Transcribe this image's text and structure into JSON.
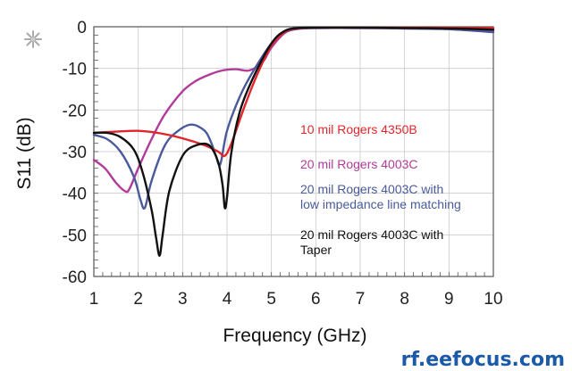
{
  "chart_data": {
    "type": "line",
    "xlabel": "Frequency (GHz)",
    "ylabel": "S11 (dB)",
    "xlim": [
      1,
      10
    ],
    "ylim": [
      -60,
      0
    ],
    "x_ticks": [
      1,
      2,
      3,
      4,
      5,
      6,
      7,
      8,
      9,
      10
    ],
    "y_ticks": [
      0,
      -10,
      -20,
      -30,
      -40,
      -50,
      -60
    ],
    "grid": true,
    "legend_position": "right",
    "series": [
      {
        "name": "10 mil Rogers 4350B",
        "color": "#e0262c",
        "x": [
          1.0,
          1.5,
          2.0,
          2.5,
          3.0,
          3.5,
          3.8,
          3.95,
          4.1,
          4.4,
          4.7,
          5.0,
          5.3,
          5.6,
          6.0,
          7.0,
          8.0,
          9.0,
          10.0
        ],
        "y": [
          -25.5,
          -25.2,
          -25.0,
          -25.6,
          -26.8,
          -28.5,
          -30.0,
          -31.0,
          -28.0,
          -19.0,
          -11.0,
          -4.5,
          -1.2,
          -0.4,
          -0.2,
          -0.2,
          -0.2,
          -0.2,
          -0.3
        ]
      },
      {
        "name": "20 mil Rogers 4003C",
        "color": "#b23a9a",
        "x": [
          1.0,
          1.25,
          1.5,
          1.7,
          1.8,
          2.0,
          2.3,
          2.6,
          3.0,
          3.3,
          3.6,
          3.9,
          4.2,
          4.5,
          4.8,
          5.0,
          5.3,
          5.6,
          6.0,
          7.0,
          8.0,
          9.0,
          10.0
        ],
        "y": [
          -32.0,
          -34.0,
          -37.5,
          -39.5,
          -39.0,
          -34.0,
          -27.0,
          -21.0,
          -15.5,
          -13.0,
          -11.5,
          -10.5,
          -10.2,
          -10.5,
          -8.5,
          -5.0,
          -1.5,
          -0.5,
          -0.3,
          -0.3,
          -0.4,
          -0.5,
          -0.9
        ]
      },
      {
        "name": "20 mil Rogers 4003C with low impedance line matching",
        "color": "#4a5a9c",
        "x": [
          1.0,
          1.3,
          1.6,
          1.9,
          2.05,
          2.15,
          2.3,
          2.6,
          2.9,
          3.2,
          3.5,
          3.65,
          3.75,
          3.85,
          4.0,
          4.3,
          4.6,
          5.0,
          5.3,
          5.6,
          6.0,
          7.0,
          8.0,
          9.0,
          10.0
        ],
        "y": [
          -26.0,
          -27.0,
          -30.0,
          -36.0,
          -41.5,
          -43.5,
          -37.0,
          -28.5,
          -25.0,
          -23.5,
          -25.0,
          -28.0,
          -31.0,
          -33.0,
          -25.0,
          -16.5,
          -10.5,
          -4.0,
          -1.2,
          -0.5,
          -0.3,
          -0.3,
          -0.4,
          -0.6,
          -1.3
        ]
      },
      {
        "name": "20 mil Rogers 4003C with Taper",
        "color": "#111111",
        "x": [
          1.0,
          1.3,
          1.6,
          1.9,
          2.1,
          2.3,
          2.4,
          2.48,
          2.55,
          2.7,
          3.0,
          3.3,
          3.6,
          3.8,
          3.9,
          3.95,
          4.0,
          4.1,
          4.3,
          4.6,
          5.0,
          5.3,
          5.6,
          6.0,
          7.0,
          8.0,
          9.0,
          10.0
        ],
        "y": [
          -25.5,
          -25.5,
          -26.5,
          -29.5,
          -35.0,
          -44.0,
          -50.5,
          -55.0,
          -50.0,
          -39.5,
          -31.0,
          -28.5,
          -28.5,
          -32.5,
          -38.0,
          -43.5,
          -41.0,
          -30.0,
          -20.0,
          -12.0,
          -4.0,
          -1.0,
          -0.3,
          -0.2,
          -0.2,
          -0.3,
          -0.4,
          -0.7
        ]
      }
    ]
  },
  "legend_lines": [
    [
      "10 mil Rogers 4350B"
    ],
    [
      "20 mil Rogers 4003C"
    ],
    [
      "20 mil Rogers 4003C with",
      "low impedance line matching"
    ],
    [
      "20 mil Rogers 4003C with",
      "Taper"
    ]
  ],
  "watermark": "rf.eefocus.com",
  "logo_icon": "snowflake-logo-icon"
}
